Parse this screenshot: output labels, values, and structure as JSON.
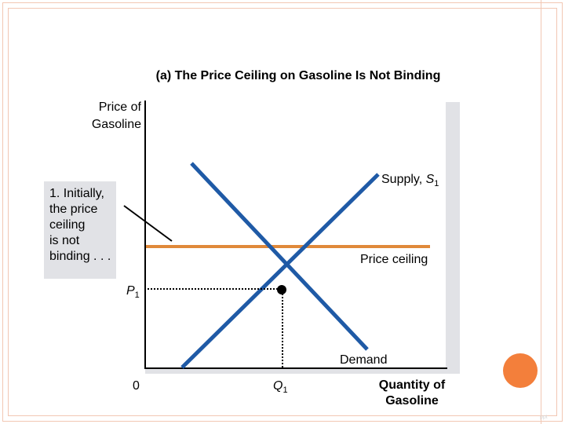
{
  "slide": {
    "title": "(a) The Price Ceiling on Gasoline Is Not Binding",
    "footer_mark": "ppt"
  },
  "axes": {
    "y_label_line1": "Price of",
    "y_label_line2": "Gasoline",
    "x_label_line1": "Quantity of",
    "x_label_line2": "Gasoline",
    "origin_label": "0"
  },
  "labels": {
    "supply_text": "Supply, ",
    "supply_symbol": "S",
    "supply_sub": "1",
    "demand": "Demand",
    "price_ceiling": "Price ceiling",
    "p_symbol": "P",
    "p_sub": "1",
    "q_symbol": "Q",
    "q_sub": "1"
  },
  "callout": {
    "lines": [
      "1. Initially,",
      "the price",
      "ceiling",
      "is not",
      "binding . . ."
    ]
  },
  "colors": {
    "curves": "#1f5aa6",
    "ceiling": "#e0893a",
    "accent_circle": "#f37f3b",
    "plot_shadow": "#e1e2e6"
  }
}
